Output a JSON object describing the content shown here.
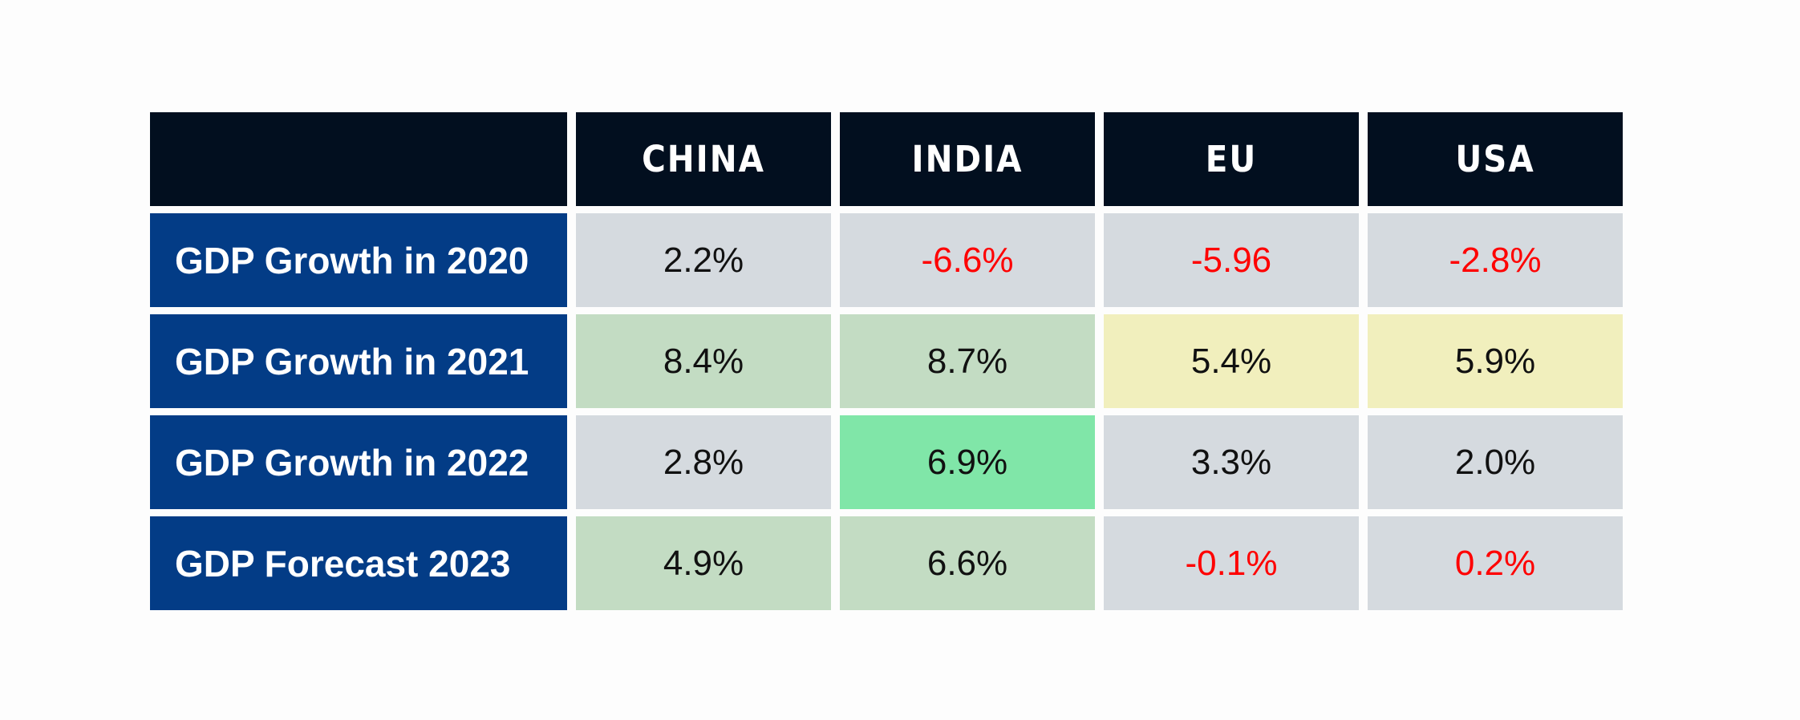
{
  "chart_data": {
    "type": "table",
    "columns": [
      "CHINA",
      "INDIA",
      "EU",
      "USA"
    ],
    "rows": [
      {
        "label": "GDP Growth in 2020",
        "cells": [
          {
            "text": "2.2%",
            "value": 2.2,
            "bg": "#d5dadf",
            "color": "#111111"
          },
          {
            "text": "-6.6%",
            "value": -6.6,
            "bg": "#d5dadf",
            "color": "#ff0000"
          },
          {
            "text": "-5.96",
            "value": -5.96,
            "bg": "#d5dadf",
            "color": "#ff0000"
          },
          {
            "text": "-2.8%",
            "value": -2.8,
            "bg": "#d5dadf",
            "color": "#ff0000"
          }
        ]
      },
      {
        "label": "GDP Growth in 2021",
        "cells": [
          {
            "text": "8.4%",
            "value": 8.4,
            "bg": "#c3dcc3",
            "color": "#111111"
          },
          {
            "text": "8.7%",
            "value": 8.7,
            "bg": "#c3dcc3",
            "color": "#111111"
          },
          {
            "text": "5.4%",
            "value": 5.4,
            "bg": "#f1efbd",
            "color": "#111111"
          },
          {
            "text": "5.9%",
            "value": 5.9,
            "bg": "#f1efbd",
            "color": "#111111"
          }
        ]
      },
      {
        "label": "GDP Growth in 2022",
        "cells": [
          {
            "text": "2.8%",
            "value": 2.8,
            "bg": "#d5dadf",
            "color": "#111111"
          },
          {
            "text": "6.9%",
            "value": 6.9,
            "bg": "#80e6a8",
            "color": "#111111"
          },
          {
            "text": "3.3%",
            "value": 3.3,
            "bg": "#d5dadf",
            "color": "#111111"
          },
          {
            "text": "2.0%",
            "value": 2.0,
            "bg": "#d5dadf",
            "color": "#111111"
          }
        ]
      },
      {
        "label": "GDP Forecast 2023",
        "cells": [
          {
            "text": "4.9%",
            "value": 4.9,
            "bg": "#c3dcc3",
            "color": "#111111"
          },
          {
            "text": "6.6%",
            "value": 6.6,
            "bg": "#c3dcc3",
            "color": "#111111"
          },
          {
            "text": "-0.1%",
            "value": -0.1,
            "bg": "#d5dadf",
            "color": "#ff0000"
          },
          {
            "text": "0.2%",
            "value": 0.2,
            "bg": "#d5dadf",
            "color": "#ff0000"
          }
        ]
      }
    ]
  },
  "colors": {
    "header_bg": "#020f1f",
    "row_header_bg": "#033c86",
    "neutral_cell": "#d5dadf",
    "green_cell": "#c3dcc3",
    "bright_green_cell": "#80e6a8",
    "yellow_cell": "#f1efbd",
    "negative_text": "#ff0000",
    "default_text": "#111111"
  }
}
